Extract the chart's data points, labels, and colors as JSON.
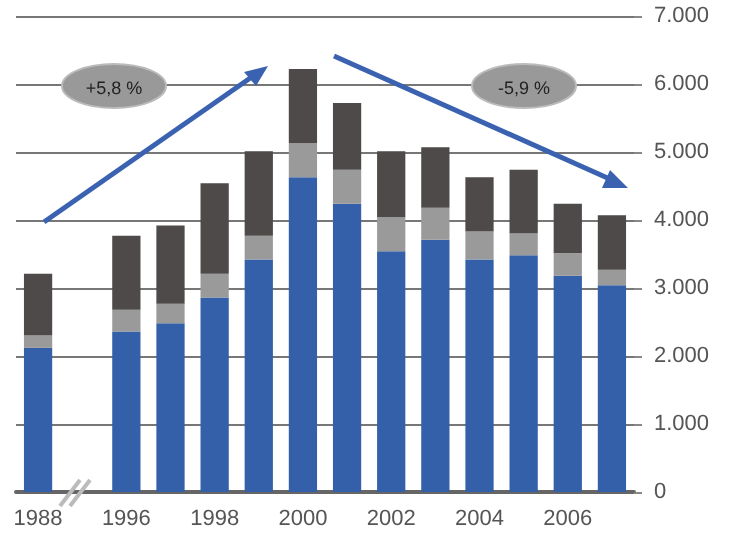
{
  "chart_data": {
    "type": "bar",
    "stacked": true,
    "categories": [
      "1988",
      null,
      "1996",
      null,
      "1998",
      null,
      "2000",
      null,
      "2002",
      null,
      "2004",
      null,
      "2006",
      null
    ],
    "series": [
      {
        "color": "#3360a9",
        "values": [
          2120,
          null,
          2360,
          2480,
          2860,
          3420,
          4630,
          4240,
          3540,
          3710,
          3420,
          3480,
          3180,
          3040
        ]
      },
      {
        "color": "#9a9a9a",
        "values": [
          180,
          null,
          320,
          290,
          350,
          350,
          500,
          500,
          500,
          470,
          410,
          320,
          330,
          230
        ]
      },
      {
        "color": "#4d4a49",
        "values": [
          910,
          null,
          1090,
          1150,
          1330,
          1240,
          1090,
          980,
          970,
          890,
          800,
          940,
          730,
          800
        ]
      }
    ],
    "ylim": [
      0,
      7000
    ],
    "yticks": [
      {
        "value": 0,
        "label": "0"
      },
      {
        "value": 1000,
        "label": "1.000"
      },
      {
        "value": 2000,
        "label": "2.000"
      },
      {
        "value": 3000,
        "label": "3.000"
      },
      {
        "value": 4000,
        "label": "4.000"
      },
      {
        "value": 5000,
        "label": "5.000"
      },
      {
        "value": 6000,
        "label": "6.000"
      },
      {
        "value": 7000,
        "label": "7.000"
      }
    ],
    "grid": "y",
    "annotations": [
      "+5,8 %",
      "-5,9 %"
    ]
  }
}
